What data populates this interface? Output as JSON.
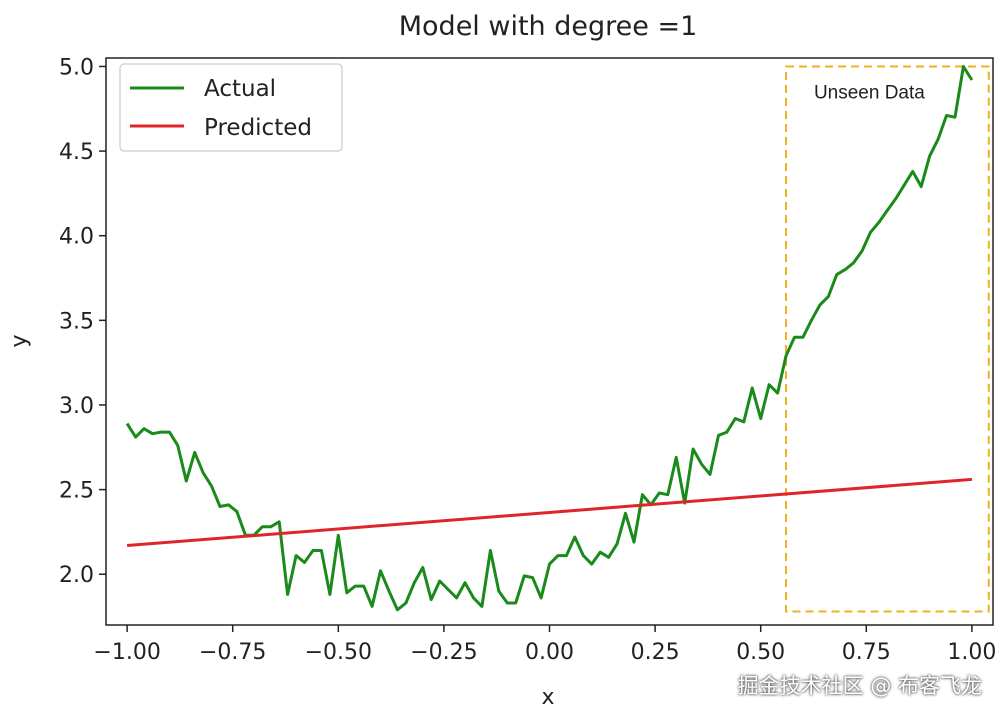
{
  "chart_data": {
    "type": "line",
    "title": "Model with degree =1",
    "xlabel": "x",
    "ylabel": "y",
    "xlim": [
      -1.05,
      1.05
    ],
    "ylim": [
      1.7,
      5.05
    ],
    "xticks": [
      -1.0,
      -0.75,
      -0.5,
      -0.25,
      0.0,
      0.25,
      0.5,
      0.75,
      1.0
    ],
    "xtick_labels": [
      "−1.00",
      "−0.75",
      "−0.50",
      "−0.25",
      "0.00",
      "0.25",
      "0.50",
      "0.75",
      "1.00"
    ],
    "yticks": [
      2.0,
      2.5,
      3.0,
      3.5,
      4.0,
      4.5,
      5.0
    ],
    "ytick_labels": [
      "2.0",
      "2.5",
      "3.0",
      "3.5",
      "4.0",
      "4.5",
      "5.0"
    ],
    "legend_position": "top-left",
    "grid": false,
    "series": [
      {
        "name": "Actual",
        "color": "#1a8a1a",
        "points": [
          [
            -1.0,
            2.89
          ],
          [
            -0.98,
            2.81
          ],
          [
            -0.96,
            2.86
          ],
          [
            -0.94,
            2.83
          ],
          [
            -0.92,
            2.84
          ],
          [
            -0.9,
            2.84
          ],
          [
            -0.88,
            2.76
          ],
          [
            -0.86,
            2.55
          ],
          [
            -0.84,
            2.72
          ],
          [
            -0.82,
            2.6
          ],
          [
            -0.8,
            2.52
          ],
          [
            -0.78,
            2.4
          ],
          [
            -0.76,
            2.41
          ],
          [
            -0.74,
            2.37
          ],
          [
            -0.72,
            2.23
          ],
          [
            -0.7,
            2.23
          ],
          [
            -0.68,
            2.28
          ],
          [
            -0.66,
            2.28
          ],
          [
            -0.64,
            2.31
          ],
          [
            -0.62,
            1.88
          ],
          [
            -0.6,
            2.11
          ],
          [
            -0.58,
            2.07
          ],
          [
            -0.56,
            2.14
          ],
          [
            -0.54,
            2.14
          ],
          [
            -0.52,
            1.88
          ],
          [
            -0.5,
            2.23
          ],
          [
            -0.48,
            1.89
          ],
          [
            -0.46,
            1.93
          ],
          [
            -0.44,
            1.93
          ],
          [
            -0.42,
            1.81
          ],
          [
            -0.4,
            2.02
          ],
          [
            -0.38,
            1.9
          ],
          [
            -0.36,
            1.79
          ],
          [
            -0.34,
            1.83
          ],
          [
            -0.32,
            1.95
          ],
          [
            -0.3,
            2.04
          ],
          [
            -0.28,
            1.85
          ],
          [
            -0.26,
            1.96
          ],
          [
            -0.24,
            1.91
          ],
          [
            -0.22,
            1.86
          ],
          [
            -0.2,
            1.95
          ],
          [
            -0.18,
            1.86
          ],
          [
            -0.16,
            1.81
          ],
          [
            -0.14,
            2.14
          ],
          [
            -0.12,
            1.9
          ],
          [
            -0.1,
            1.83
          ],
          [
            -0.08,
            1.83
          ],
          [
            -0.06,
            1.99
          ],
          [
            -0.04,
            1.98
          ],
          [
            -0.02,
            1.86
          ],
          [
            0.0,
            2.06
          ],
          [
            0.02,
            2.11
          ],
          [
            0.04,
            2.11
          ],
          [
            0.06,
            2.22
          ],
          [
            0.08,
            2.11
          ],
          [
            0.1,
            2.06
          ],
          [
            0.12,
            2.13
          ],
          [
            0.14,
            2.1
          ],
          [
            0.16,
            2.18
          ],
          [
            0.18,
            2.36
          ],
          [
            0.2,
            2.19
          ],
          [
            0.22,
            2.47
          ],
          [
            0.24,
            2.41
          ],
          [
            0.26,
            2.48
          ],
          [
            0.28,
            2.47
          ],
          [
            0.3,
            2.69
          ],
          [
            0.32,
            2.42
          ],
          [
            0.34,
            2.74
          ],
          [
            0.36,
            2.65
          ],
          [
            0.38,
            2.59
          ],
          [
            0.4,
            2.82
          ],
          [
            0.42,
            2.84
          ],
          [
            0.44,
            2.92
          ],
          [
            0.46,
            2.9
          ],
          [
            0.48,
            3.1
          ],
          [
            0.5,
            2.92
          ],
          [
            0.52,
            3.12
          ],
          [
            0.54,
            3.07
          ],
          [
            0.56,
            3.29
          ],
          [
            0.58,
            3.4
          ],
          [
            0.6,
            3.4
          ],
          [
            0.62,
            3.5
          ],
          [
            0.64,
            3.59
          ],
          [
            0.66,
            3.64
          ],
          [
            0.68,
            3.77
          ],
          [
            0.7,
            3.8
          ],
          [
            0.72,
            3.84
          ],
          [
            0.74,
            3.91
          ],
          [
            0.76,
            4.02
          ],
          [
            0.78,
            4.08
          ],
          [
            0.8,
            4.15
          ],
          [
            0.82,
            4.22
          ],
          [
            0.84,
            4.3
          ],
          [
            0.86,
            4.38
          ],
          [
            0.88,
            4.29
          ],
          [
            0.9,
            4.47
          ],
          [
            0.92,
            4.57
          ],
          [
            0.94,
            4.71
          ],
          [
            0.96,
            4.7
          ],
          [
            0.98,
            5.0
          ],
          [
            1.0,
            4.92
          ]
        ]
      },
      {
        "name": "Predicted",
        "color": "#e0242a",
        "points": [
          [
            -1.0,
            2.17
          ],
          [
            1.0,
            2.56
          ]
        ]
      }
    ],
    "annotation": {
      "label": "Unseen Data",
      "color": "#f0b020",
      "x_range": [
        0.56,
        1.04
      ],
      "y_range": [
        1.78,
        5.0
      ]
    }
  },
  "watermark": "掘金技术社区 @ 布客飞龙"
}
